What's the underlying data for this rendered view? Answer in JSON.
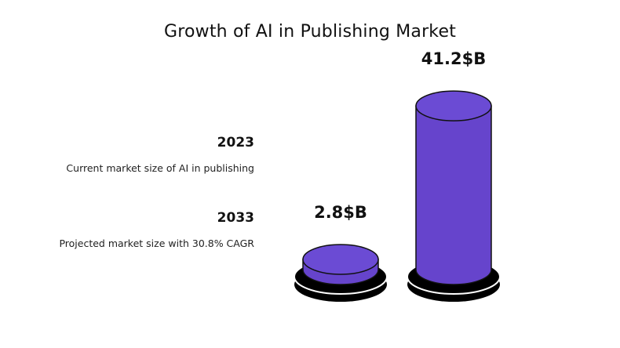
{
  "chart_data": {
    "type": "bar",
    "title": "Growth of AI in Publishing Market",
    "categories": [
      "2023",
      "2033"
    ],
    "values": [
      2.8,
      41.2
    ],
    "value_labels": [
      "2.8$B",
      "41.2$B"
    ],
    "descriptions": [
      "Current market size of AI in publishing",
      "Projected market size with 30.8% CAGR"
    ],
    "xlabel": "",
    "ylabel": "",
    "grid": false,
    "colors": {
      "bar": "#6644cc",
      "bar_top": "#6b4bd4",
      "base": "#000000",
      "outline": "#111111"
    }
  }
}
